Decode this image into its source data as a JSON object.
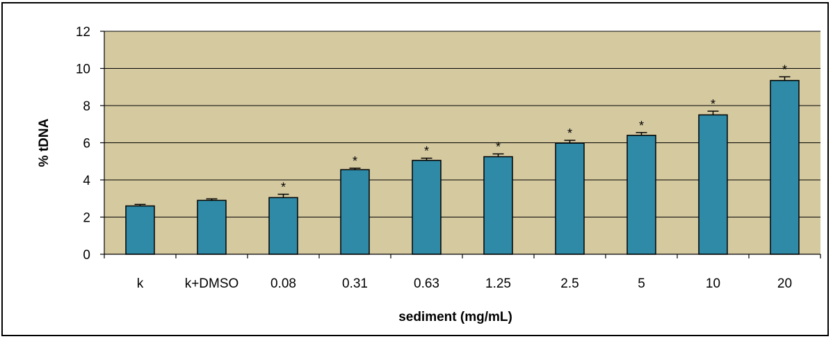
{
  "chart_data": {
    "type": "bar",
    "title": "",
    "xlabel": "sediment (mg/mL)",
    "ylabel": "% tDNA",
    "categories": [
      "k",
      "k+DMSO",
      "0.08",
      "0.31",
      "0.63",
      "1.25",
      "2.5",
      "5",
      "10",
      "20"
    ],
    "values": [
      2.6,
      2.9,
      3.05,
      4.55,
      5.05,
      5.25,
      5.98,
      6.4,
      7.5,
      9.35
    ],
    "errors": [
      0.08,
      0.08,
      0.18,
      0.08,
      0.12,
      0.15,
      0.15,
      0.15,
      0.2,
      0.2
    ],
    "significance": [
      "",
      "",
      "*",
      "*",
      "*",
      "*",
      "*",
      "*",
      "*",
      "*"
    ],
    "ylim": [
      0,
      12
    ],
    "yticks": [
      "0",
      "2",
      "4",
      "6",
      "8",
      "10",
      "12"
    ],
    "grid": true,
    "colors": {
      "bar": "#2e8aa6",
      "bar_edge": "#000000",
      "plot_bg": "#d5c9a0",
      "grid": "#000000"
    }
  }
}
